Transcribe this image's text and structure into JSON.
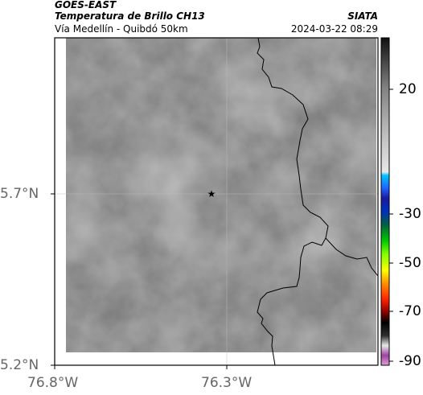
{
  "header": {
    "satellite": "GOES-EAST",
    "product": "Temperatura de Brillo CH13",
    "region": "Vía Medellín - Quibdó 50km",
    "agency": "SIATA",
    "datetime": "2024-03-22 08:29"
  },
  "map": {
    "lat_labels": [
      "5.7°N",
      "5.2°N"
    ],
    "lon_labels": [
      "76.8°W",
      "76.3°W"
    ],
    "marker": "star-marker"
  },
  "colorbar": {
    "tick_labels": [
      "20",
      "-30",
      "-50",
      "-70",
      "-90"
    ],
    "colors": {
      "warm_gray": "#7a7a7a",
      "cyan": "#00c8ff",
      "blue": "#1a1aa0",
      "green": "#00c800",
      "yellow": "#ffff00",
      "red": "#ff2000",
      "black": "#000000",
      "magenta": "#c060c0"
    }
  }
}
